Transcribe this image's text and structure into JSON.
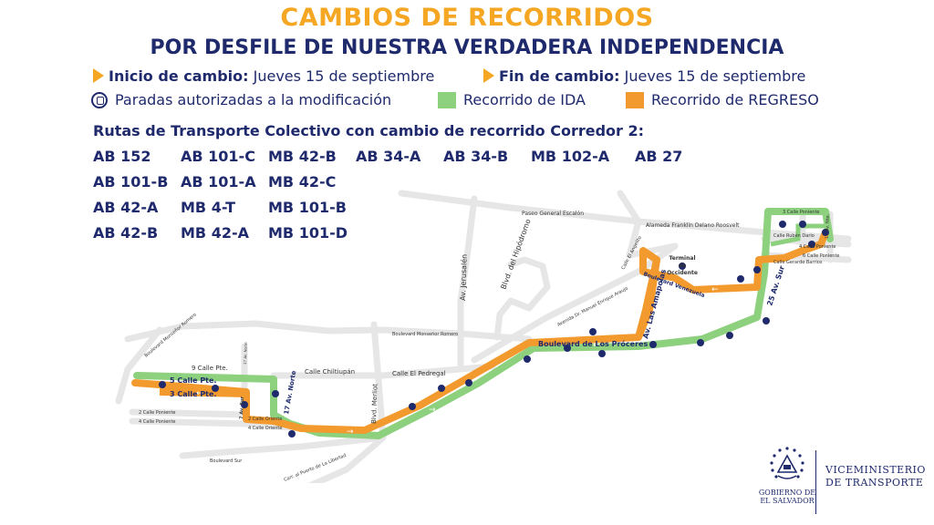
{
  "header": {
    "title": "CAMBIOS DE RECORRIDOS",
    "subtitle": "POR DESFILE DE NUESTRA VERDADERA INDEPENDENCIA"
  },
  "info": {
    "start_label": "Inicio de cambio:",
    "start_value": "Jueves 15 de septiembre",
    "end_label": "Fin de cambio:",
    "end_value": "Jueves 15 de septiembre"
  },
  "legend": {
    "stops": "Paradas autorizadas a la modificación",
    "ida": "Recorrido de IDA",
    "regreso": "Recorrido de REGRESO",
    "ida_color": "#8dd17e",
    "regreso_color": "#f39a2e"
  },
  "routes": {
    "title": "Rutas de Transporte Colectivo con cambio de recorrido Corredor 2:",
    "rows": [
      [
        "AB 152",
        "AB 101-C",
        "MB 42-B",
        "AB 34-A",
        "AB 34-B",
        "MB 102-A",
        "AB 27"
      ],
      [
        "AB 101-B",
        "AB 101-A",
        "MB 42-C"
      ],
      [
        "AB 42-A",
        "MB 4-T",
        "MB 101-B"
      ],
      [
        "AB 42-B",
        "MB 42-A",
        "MB 101-D"
      ]
    ]
  },
  "map": {
    "streets": {
      "paseo": "Paseo General Escalón",
      "alameda": "Alameda Franklin Delano Roosvelt",
      "jerusalen": "Av. Jerusalén",
      "hipodromo": "Blvd. del Hipódromo",
      "araujo": "Avenida Dr. Manuel Enrique Araujo",
      "monsenor1": "Boulevard Monseñor Romero",
      "monsenor2": "Boulevard Monseñor Romero",
      "nueve": "9 Calle Pte.",
      "cinco": "5 Calle Pte.",
      "tres": "3 Calle Pte.",
      "chiltiupan": "Calle Chiltiupán",
      "pedregal": "Calle El Pedregal",
      "merliot": "Blvd. Merliot",
      "diecisiete_norte": "17 Av. Norte",
      "norte_small": "17 Av. Norte",
      "siete_av": "7 Av. Sur",
      "dos_oriente": "2 Calle Oriente",
      "cuatro_oriente": "4 Calle Oriente",
      "dos_poniente": "2 Calle Poniente",
      "cuatro_poniente": "4 Calle Poniente",
      "bvd_sur": "Boulevard Sur",
      "carretera": "Carr. al Puerto de La Libertad",
      "proceres": "Boulevard de Los Próceres",
      "amapolas": "Av. Las Amapolas",
      "venezuela": "Boulevard Venezuela",
      "angelito": "Calle El Angelito",
      "terminal": [
        "Terminal",
        "de",
        "Occidente"
      ],
      "veinticinco": "25 Av. Sur",
      "tres_pte_e": "3 Calle Poniente",
      "ruben": "Calle Rubén Darío",
      "cuatro_pte_e": "4 Calle Poniente",
      "seis_pte_e": "6 Calle Poniente",
      "barrios": "Calle Gerardo Barrios",
      "diecisiete_e": "17 Av. Nte."
    }
  },
  "footer": {
    "gov1": "GOBIERNO DE",
    "gov2": "EL SALVADOR",
    "vice1": "VICEMINISTERIO",
    "vice2": "DE TRANSPORTE"
  }
}
